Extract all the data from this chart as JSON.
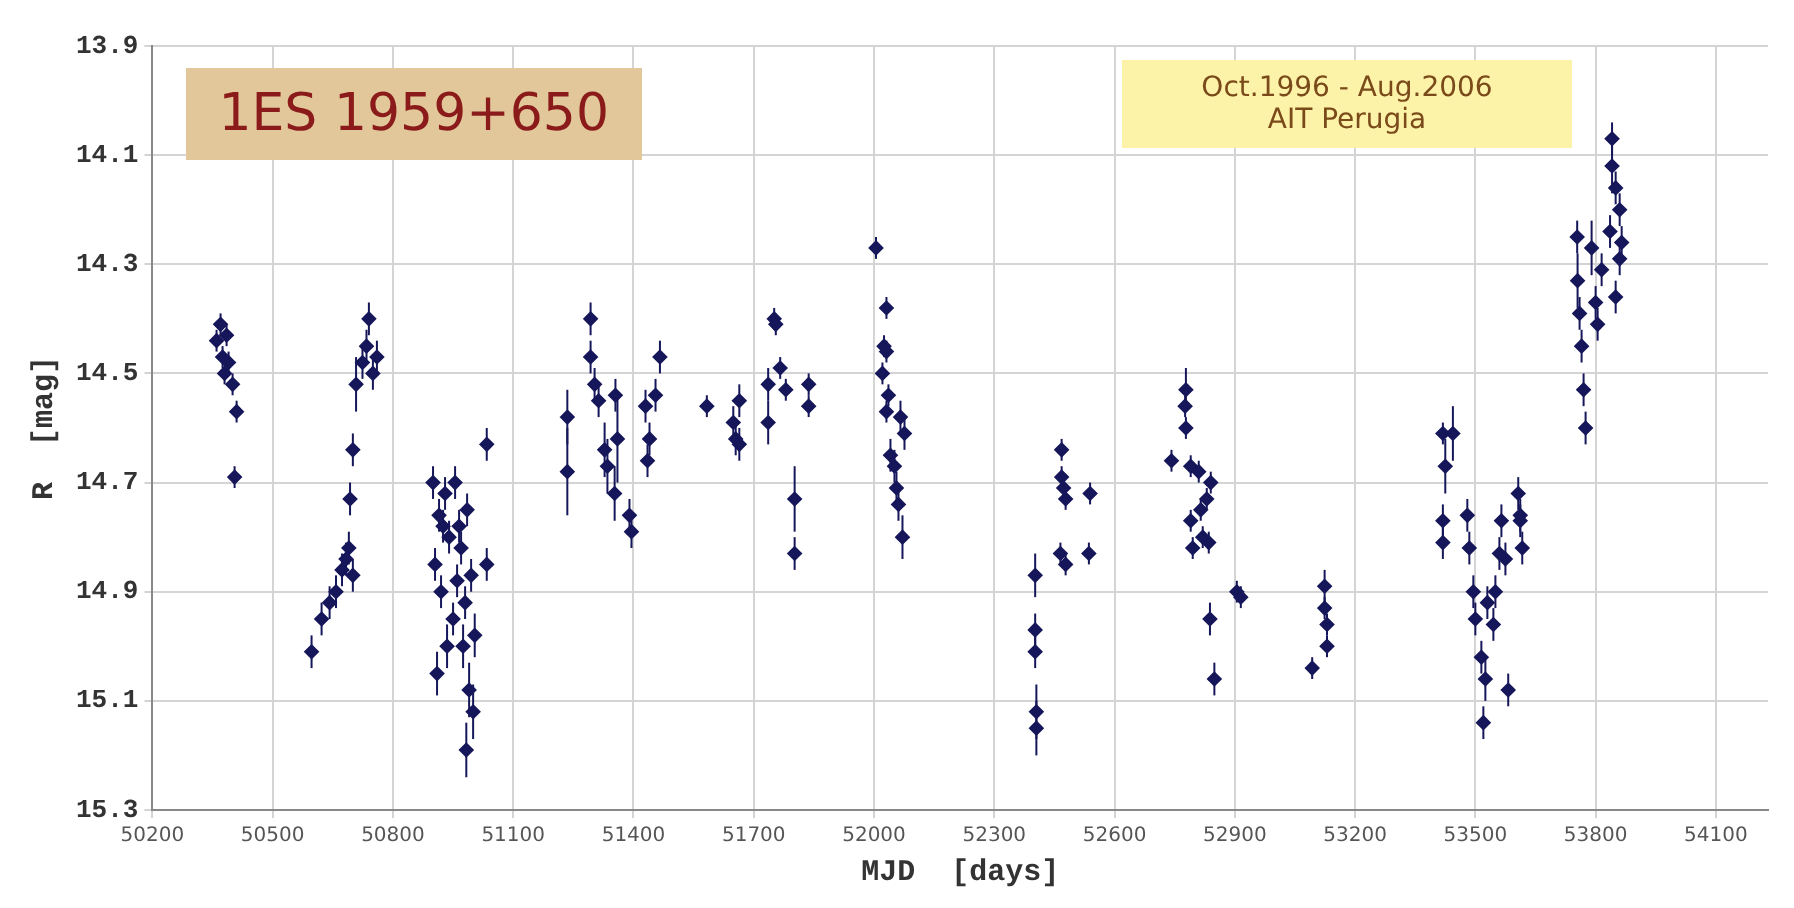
{
  "chart_data": {
    "type": "scatter",
    "xlabel": "MJD  [days]",
    "ylabel": "R  [mag]",
    "annotations": [
      "1ES 1959+650",
      "Oct.1996 - Aug.2006",
      "AIT Perugia"
    ],
    "xlim": [
      50200,
      54230
    ],
    "xticks": [
      50200,
      50500,
      50800,
      51100,
      51400,
      51700,
      52000,
      52300,
      52600,
      52900,
      53200,
      53500,
      53800,
      54100
    ],
    "ylim": [
      15.3,
      13.9
    ],
    "yticks": [
      13.9,
      14.1,
      14.3,
      14.5,
      14.7,
      14.9,
      15.1,
      15.3
    ],
    "grid": true,
    "marker": "diamond",
    "legend": false,
    "series": [
      {
        "color": "#16165a",
        "x": [
          50360,
          50370,
          50375,
          50380,
          50385,
          50390,
          50400,
          50410,
          50405,
          50597,
          50622,
          50642,
          50658,
          50673,
          50683,
          50690,
          50700,
          50693,
          50700,
          50708,
          50724,
          50734,
          50740,
          50750,
          50760,
          50900,
          50905,
          50910,
          50915,
          50920,
          50925,
          50930,
          50935,
          50940,
          50950,
          50955,
          50960,
          50965,
          50970,
          50975,
          50980,
          50985,
          50990,
          50995,
          51000,
          51004,
          50983,
          51034,
          51034,
          51235,
          51235,
          51293,
          51293,
          51303,
          51313,
          51328,
          51335,
          51353,
          51355,
          51360,
          51395,
          51390,
          51430,
          51435,
          51440,
          51455,
          51466,
          51583,
          51649,
          51655,
          51664,
          51664,
          51736,
          51736,
          51751,
          51755,
          51766,
          51780,
          51802,
          51802,
          51837,
          51837,
          52005,
          52031,
          52025,
          52031,
          52021,
          52036,
          52031,
          52041,
          52051,
          52056,
          52061,
          52071,
          52066,
          52076,
          52402,
          52402,
          52402,
          52405,
          52405,
          52468,
          52468,
          52473,
          52478,
          52465,
          52478,
          52539,
          52536,
          52742,
          52778,
          52776,
          52778,
          52790,
          52790,
          52795,
          52810,
          52815,
          52820,
          52849,
          52830,
          52835,
          52838,
          52840,
          52905,
          52915,
          53093,
          53124,
          53124,
          53130,
          53130,
          53419,
          53444,
          53425,
          53419,
          53419,
          53480,
          53485,
          53495,
          53500,
          53515,
          53520,
          53525,
          53530,
          53545,
          53550,
          53560,
          53582,
          53565,
          53575,
          53607,
          53612,
          53617,
          53612,
          53754,
          53755,
          53760,
          53765,
          53770,
          53775,
          53790,
          53800,
          53805,
          53815,
          53836,
          53841,
          53841,
          53850,
          53860,
          53850,
          53865,
          53860
        ],
        "values": [
          14.44,
          14.41,
          14.47,
          14.5,
          14.43,
          14.48,
          14.52,
          14.57,
          14.69,
          15.01,
          14.95,
          14.92,
          14.9,
          14.86,
          14.84,
          14.82,
          14.87,
          14.73,
          14.64,
          14.52,
          14.48,
          14.45,
          14.4,
          14.5,
          14.47,
          14.7,
          14.85,
          15.05,
          14.76,
          14.9,
          14.78,
          14.72,
          15.0,
          14.8,
          14.95,
          14.7,
          14.88,
          14.78,
          14.82,
          15.0,
          14.92,
          14.75,
          15.08,
          14.87,
          15.12,
          14.98,
          15.19,
          14.63,
          14.85,
          14.58,
          14.68,
          14.4,
          14.47,
          14.52,
          14.55,
          14.64,
          14.67,
          14.72,
          14.54,
          14.62,
          14.79,
          14.76,
          14.56,
          14.66,
          14.62,
          14.54,
          14.47,
          14.56,
          14.59,
          14.62,
          14.55,
          14.63,
          14.52,
          14.59,
          14.4,
          14.41,
          14.49,
          14.53,
          14.73,
          14.83,
          14.52,
          14.56,
          14.27,
          14.38,
          14.45,
          14.46,
          14.5,
          14.54,
          14.57,
          14.65,
          14.67,
          14.71,
          14.74,
          14.8,
          14.58,
          14.61,
          14.87,
          14.97,
          15.01,
          15.12,
          15.15,
          14.64,
          14.69,
          14.71,
          14.73,
          14.83,
          14.85,
          14.72,
          14.83,
          14.66,
          14.53,
          14.56,
          14.6,
          14.67,
          14.77,
          14.82,
          14.68,
          14.75,
          14.8,
          15.06,
          14.73,
          14.81,
          14.95,
          14.7,
          14.9,
          14.91,
          15.04,
          14.89,
          14.93,
          14.96,
          15.0,
          14.61,
          14.61,
          14.67,
          14.77,
          14.81,
          14.76,
          14.82,
          14.9,
          14.95,
          15.02,
          15.14,
          15.06,
          14.92,
          14.96,
          14.9,
          14.83,
          15.08,
          14.77,
          14.84,
          14.72,
          14.77,
          14.82,
          14.76,
          14.25,
          14.33,
          14.39,
          14.45,
          14.53,
          14.6,
          14.27,
          14.37,
          14.41,
          14.31,
          14.24,
          14.07,
          14.12,
          14.16,
          14.29,
          14.36,
          14.26,
          14.2
        ],
        "errors": [
          0.02,
          0.02,
          0.02,
          0.02,
          0.02,
          0.02,
          0.02,
          0.02,
          0.02,
          0.03,
          0.03,
          0.03,
          0.03,
          0.03,
          0.03,
          0.03,
          0.03,
          0.03,
          0.03,
          0.05,
          0.03,
          0.03,
          0.03,
          0.03,
          0.03,
          0.03,
          0.03,
          0.04,
          0.03,
          0.03,
          0.03,
          0.03,
          0.04,
          0.03,
          0.03,
          0.03,
          0.03,
          0.03,
          0.03,
          0.04,
          0.03,
          0.03,
          0.05,
          0.03,
          0.05,
          0.04,
          0.05,
          0.03,
          0.03,
          0.05,
          0.08,
          0.03,
          0.03,
          0.03,
          0.03,
          0.05,
          0.05,
          0.05,
          0.03,
          0.08,
          0.03,
          0.03,
          0.03,
          0.03,
          0.03,
          0.03,
          0.03,
          0.02,
          0.03,
          0.03,
          0.03,
          0.03,
          0.03,
          0.04,
          0.02,
          0.02,
          0.02,
          0.02,
          0.06,
          0.03,
          0.02,
          0.02,
          0.02,
          0.02,
          0.02,
          0.02,
          0.02,
          0.02,
          0.02,
          0.03,
          0.03,
          0.03,
          0.03,
          0.04,
          0.03,
          0.03,
          0.04,
          0.03,
          0.03,
          0.05,
          0.05,
          0.02,
          0.02,
          0.02,
          0.02,
          0.02,
          0.02,
          0.02,
          0.02,
          0.02,
          0.04,
          0.02,
          0.02,
          0.02,
          0.02,
          0.02,
          0.02,
          0.02,
          0.02,
          0.03,
          0.02,
          0.02,
          0.03,
          0.02,
          0.02,
          0.02,
          0.02,
          0.03,
          0.02,
          0.02,
          0.02,
          0.02,
          0.05,
          0.05,
          0.03,
          0.03,
          0.03,
          0.03,
          0.03,
          0.03,
          0.03,
          0.03,
          0.04,
          0.03,
          0.03,
          0.03,
          0.03,
          0.03,
          0.03,
          0.03,
          0.03,
          0.03,
          0.03,
          0.03,
          0.03,
          0.05,
          0.03,
          0.03,
          0.03,
          0.03,
          0.05,
          0.03,
          0.03,
          0.03,
          0.03,
          0.03,
          0.05,
          0.03,
          0.03,
          0.03,
          0.03,
          0.03
        ]
      }
    ]
  }
}
